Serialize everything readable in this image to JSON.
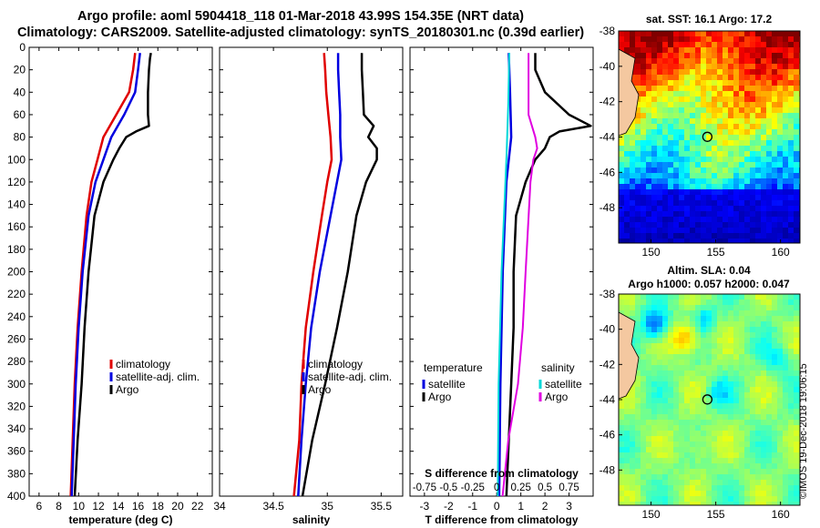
{
  "header": {
    "line1": "Argo profile: aoml 5904418_118 01-Mar-2018 43.99S 154.35E (NRT data)",
    "line2": "Climatology: CARS2009. Satellite-adjusted climatology: synTS_20180301.nc (0.39d earlier)"
  },
  "sst_map": {
    "title": "sat. SST: 16.1 Argo: 17.2"
  },
  "sla_map": {
    "title1": "Altim. SLA: 0.04",
    "title2": "Argo h1000: 0.057 h2000: 0.047"
  },
  "footnote": "©IMOS 19-Dec-2018 19:06:15",
  "colors": {
    "climatology": "#e00000",
    "satellite": "#0000e0",
    "argo": "#000000",
    "satellite_s": "#00d8d8",
    "argo_s": "#e000e0"
  },
  "chart_data": [
    {
      "type": "line",
      "panel": "temperature",
      "xlabel": "temperature (deg C)",
      "ylabel": "",
      "xlim": [
        5,
        23.5
      ],
      "ylim": [
        400,
        0
      ],
      "xticks": [
        6,
        8,
        10,
        12,
        14,
        16,
        18,
        20,
        22
      ],
      "yticks": [
        0,
        20,
        40,
        60,
        80,
        100,
        120,
        140,
        160,
        180,
        200,
        220,
        240,
        260,
        280,
        300,
        320,
        340,
        360,
        380,
        400
      ],
      "legend": [
        "climatology",
        "satellite-adj. clim.",
        "Argo"
      ],
      "series": [
        {
          "name": "climatology",
          "depth": [
            5,
            20,
            40,
            60,
            80,
            100,
            120,
            150,
            200,
            250,
            300,
            350,
            400
          ],
          "values": [
            15.7,
            15.5,
            15.1,
            13.8,
            12.5,
            11.9,
            11.3,
            10.8,
            10.3,
            9.9,
            9.6,
            9.4,
            9.2
          ]
        },
        {
          "name": "satellite-adj. clim.",
          "depth": [
            5,
            20,
            40,
            60,
            80,
            100,
            120,
            150,
            200,
            250,
            300,
            350,
            400
          ],
          "values": [
            16.2,
            16.0,
            15.7,
            14.6,
            13.3,
            12.5,
            11.7,
            11.0,
            10.4,
            10.0,
            9.7,
            9.5,
            9.3
          ]
        },
        {
          "name": "Argo",
          "depth": [
            5,
            10,
            20,
            40,
            60,
            70,
            75,
            80,
            90,
            100,
            120,
            150,
            200,
            250,
            300,
            350,
            400
          ],
          "values": [
            17.3,
            17.2,
            17.1,
            17.0,
            17.0,
            17.1,
            15.8,
            14.8,
            14.1,
            13.5,
            12.5,
            11.6,
            11.0,
            10.6,
            10.3,
            9.9,
            9.6
          ]
        }
      ]
    },
    {
      "type": "line",
      "panel": "salinity",
      "xlabel": "salinity",
      "ylabel": "",
      "xlim": [
        34.0,
        35.7
      ],
      "ylim": [
        400,
        0
      ],
      "xticks": [
        34,
        34.5,
        35,
        35.5
      ],
      "legend": [
        "climatology",
        "satellite-adj. clim.",
        "Argo"
      ],
      "series": [
        {
          "name": "climatology",
          "depth": [
            5,
            20,
            40,
            60,
            80,
            100,
            120,
            150,
            200,
            250,
            300,
            350,
            400
          ],
          "values": [
            34.97,
            34.98,
            34.99,
            35.01,
            35.03,
            35.04,
            35.0,
            34.95,
            34.87,
            34.8,
            34.76,
            34.74,
            34.69
          ]
        },
        {
          "name": "satellite-adj. clim.",
          "depth": [
            5,
            20,
            40,
            60,
            80,
            100,
            120,
            150,
            200,
            250,
            300,
            350,
            400
          ],
          "values": [
            35.1,
            35.1,
            35.11,
            35.12,
            35.12,
            35.13,
            35.09,
            35.03,
            34.93,
            34.85,
            34.8,
            34.76,
            34.73
          ]
        },
        {
          "name": "Argo",
          "depth": [
            5,
            20,
            40,
            60,
            70,
            80,
            90,
            100,
            120,
            150,
            200,
            250,
            300,
            350,
            400
          ],
          "values": [
            35.32,
            35.32,
            35.33,
            35.34,
            35.43,
            35.38,
            35.46,
            35.46,
            35.36,
            35.27,
            35.19,
            35.09,
            34.98,
            34.86,
            34.77
          ]
        }
      ]
    },
    {
      "type": "line",
      "panel": "difference",
      "xlabel": "T difference from climatology",
      "x2label": "S difference from climatology",
      "xlim": [
        -3.6,
        4.0
      ],
      "ylim": [
        400,
        0
      ],
      "xticks": [
        -3,
        -2,
        -1,
        0,
        1,
        2,
        3
      ],
      "x2ticks": [
        "-0.75",
        "-0.5",
        "-0.25",
        "0",
        "0.25",
        "0.5",
        "0.75"
      ],
      "legend_t_title": "temperature",
      "legend_s_title": "salinity",
      "legend_t": [
        "satellite",
        "Argo"
      ],
      "legend_s": [
        "satellite",
        "Argo"
      ],
      "series": [
        {
          "name": "T satellite",
          "depth": [
            5,
            40,
            80,
            120,
            200,
            300,
            400
          ],
          "values": [
            0.5,
            0.55,
            0.6,
            0.4,
            0.25,
            0.15,
            0.1
          ]
        },
        {
          "name": "T Argo",
          "depth": [
            5,
            20,
            40,
            60,
            70,
            75,
            80,
            90,
            100,
            120,
            150,
            200,
            250,
            300,
            350,
            400
          ],
          "values": [
            1.6,
            1.6,
            2.0,
            3.0,
            3.9,
            2.6,
            2.2,
            2.0,
            1.6,
            1.2,
            0.8,
            0.7,
            0.7,
            0.6,
            0.5,
            0.4
          ]
        },
        {
          "name": "S satellite",
          "depth": [
            5,
            50,
            100,
            200,
            300,
            400
          ],
          "values": [
            0.13,
            0.12,
            0.1,
            0.05,
            0.02,
            0.01
          ]
        },
        {
          "name": "S Argo",
          "depth": [
            5,
            40,
            60,
            80,
            90,
            100,
            120,
            200,
            250,
            300,
            350,
            400
          ],
          "values": [
            0.33,
            0.33,
            0.33,
            0.4,
            0.42,
            0.38,
            0.35,
            0.3,
            0.27,
            0.22,
            0.12,
            0.06
          ]
        }
      ]
    },
    {
      "type": "heatmap",
      "panel": "sst",
      "xticks": [
        150,
        155,
        160
      ],
      "yticks": [
        -38,
        -40,
        -42,
        -44,
        -46,
        -48
      ],
      "xlim": [
        147.5,
        161.5
      ],
      "ylim": [
        -50,
        -38
      ],
      "argo_position": [
        154.35,
        -43.99
      ]
    },
    {
      "type": "heatmap",
      "panel": "sla",
      "xticks": [
        150,
        155,
        160
      ],
      "yticks": [
        -38,
        -40,
        -42,
        -44,
        -46,
        -48
      ],
      "xlim": [
        147.5,
        161.5
      ],
      "ylim": [
        -50,
        -38
      ],
      "argo_position": [
        154.35,
        -43.99
      ]
    }
  ]
}
